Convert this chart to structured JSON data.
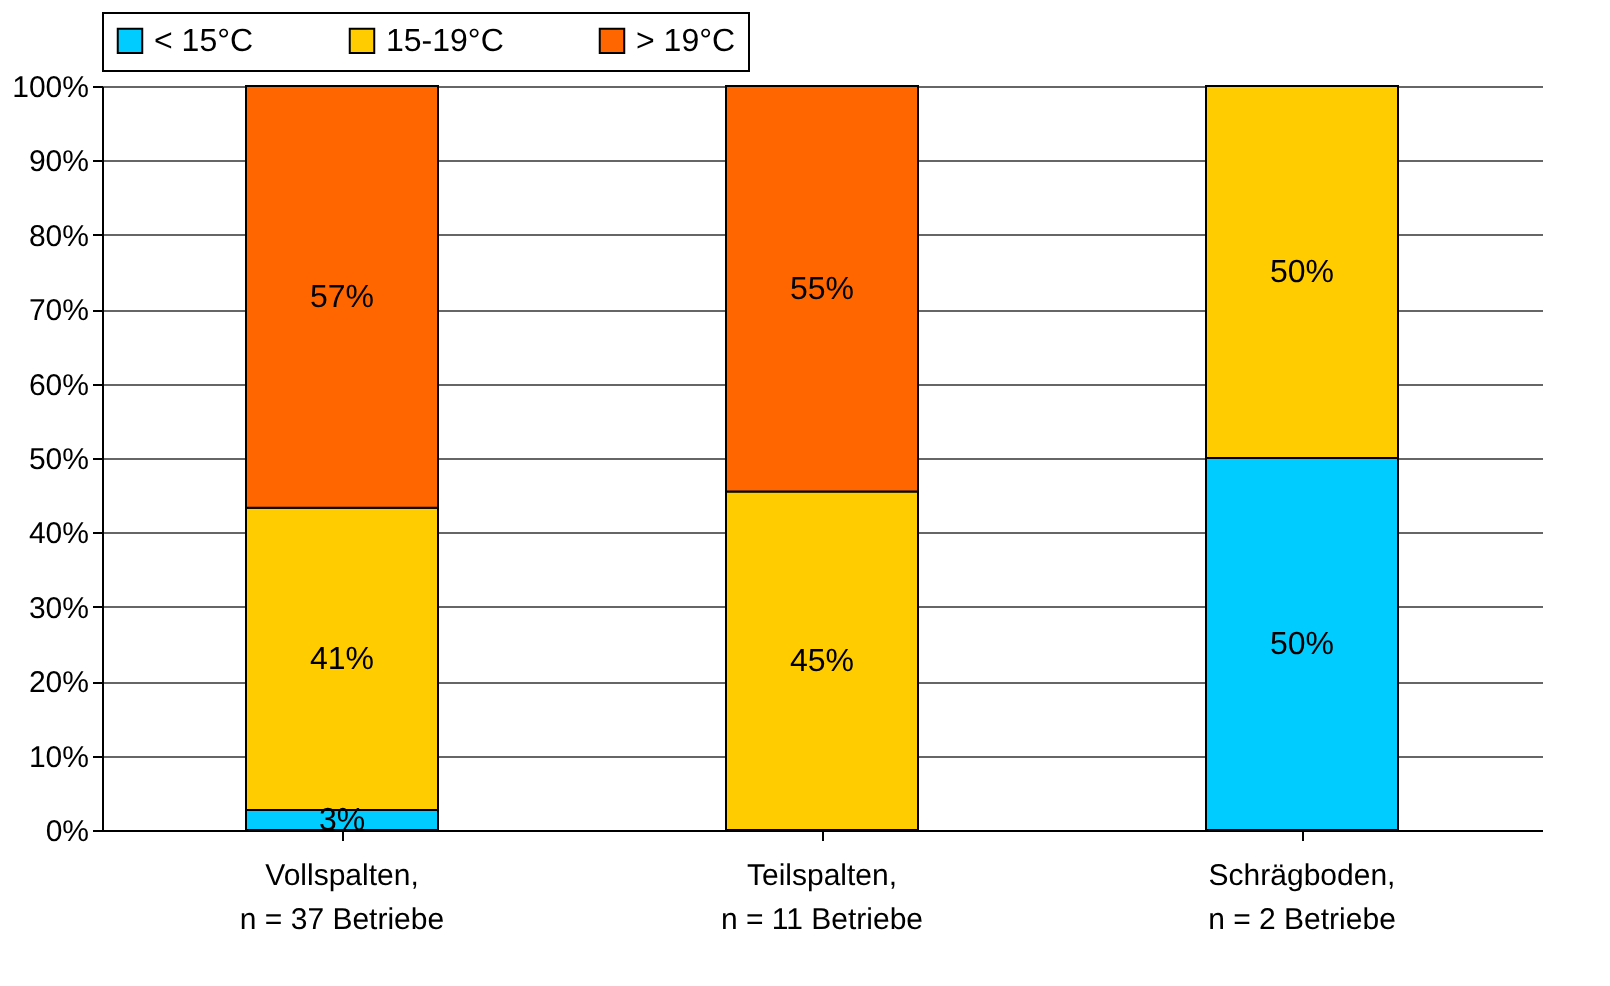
{
  "chart_data": {
    "type": "bar",
    "stacked": true,
    "categories": [
      "Vollspalten,\nn = 37 Betriebe",
      "Teilspalten,\nn = 11 Betriebe",
      "Schrägboden,\nn = 2 Betriebe"
    ],
    "series": [
      {
        "name": "< 15°C",
        "color": "#00ccff",
        "values": [
          2.7,
          null,
          50
        ],
        "value_labels": [
          "3%",
          null,
          "50%"
        ]
      },
      {
        "name": "15-19°C",
        "color": "#ffcc00",
        "values": [
          40.6,
          45.5,
          50
        ],
        "value_labels": [
          "41%",
          "45%",
          "50%"
        ]
      },
      {
        "name": "> 19°C",
        "color": "#ff6600",
        "values": [
          56.7,
          54.5,
          null
        ],
        "value_labels": [
          "57%",
          "55%",
          null
        ]
      }
    ],
    "ylim": [
      0,
      100
    ],
    "yticks": [
      {
        "value": 0,
        "label": "0%"
      },
      {
        "value": 10,
        "label": "10%"
      },
      {
        "value": 20,
        "label": "20%"
      },
      {
        "value": 30,
        "label": "30%"
      },
      {
        "value": 40,
        "label": "40%"
      },
      {
        "value": 50,
        "label": "50%"
      },
      {
        "value": 60,
        "label": "60%"
      },
      {
        "value": 70,
        "label": "70%"
      },
      {
        "value": 80,
        "label": "80%"
      },
      {
        "value": 90,
        "label": "90%"
      },
      {
        "value": 100,
        "label": "100%"
      }
    ],
    "grid": "y",
    "legend": "top"
  }
}
